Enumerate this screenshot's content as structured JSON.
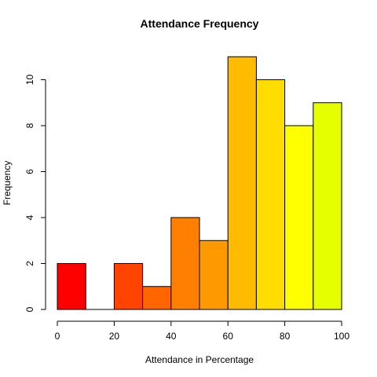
{
  "chart_data": {
    "type": "bar",
    "title": "Attendance Frequency",
    "xlabel": "Attendance in Percentage",
    "ylabel": "Frequency",
    "bins": [
      {
        "from": 0,
        "to": 10,
        "count": 2,
        "color": "#FF0000"
      },
      {
        "from": 10,
        "to": 20,
        "count": 0,
        "color": "#FF2200"
      },
      {
        "from": 20,
        "to": 30,
        "count": 2,
        "color": "#FF4400"
      },
      {
        "from": 30,
        "to": 40,
        "count": 1,
        "color": "#FF6600"
      },
      {
        "from": 40,
        "to": 50,
        "count": 4,
        "color": "#FF7F00"
      },
      {
        "from": 50,
        "to": 60,
        "count": 3,
        "color": "#FF9900"
      },
      {
        "from": 60,
        "to": 70,
        "count": 11,
        "color": "#FFBB00"
      },
      {
        "from": 70,
        "to": 80,
        "count": 10,
        "color": "#FFDD00"
      },
      {
        "from": 80,
        "to": 90,
        "count": 8,
        "color": "#FFFF00"
      },
      {
        "from": 90,
        "to": 100,
        "count": 9,
        "color": "#E6FF00"
      }
    ],
    "xlim": [
      0,
      100
    ],
    "ylim": [
      0,
      11
    ],
    "x_ticks": [
      "0",
      "20",
      "40",
      "60",
      "80",
      "100"
    ],
    "y_ticks": [
      "0",
      "2",
      "4",
      "6",
      "8",
      "10"
    ],
    "grid": false,
    "legend": "none"
  }
}
